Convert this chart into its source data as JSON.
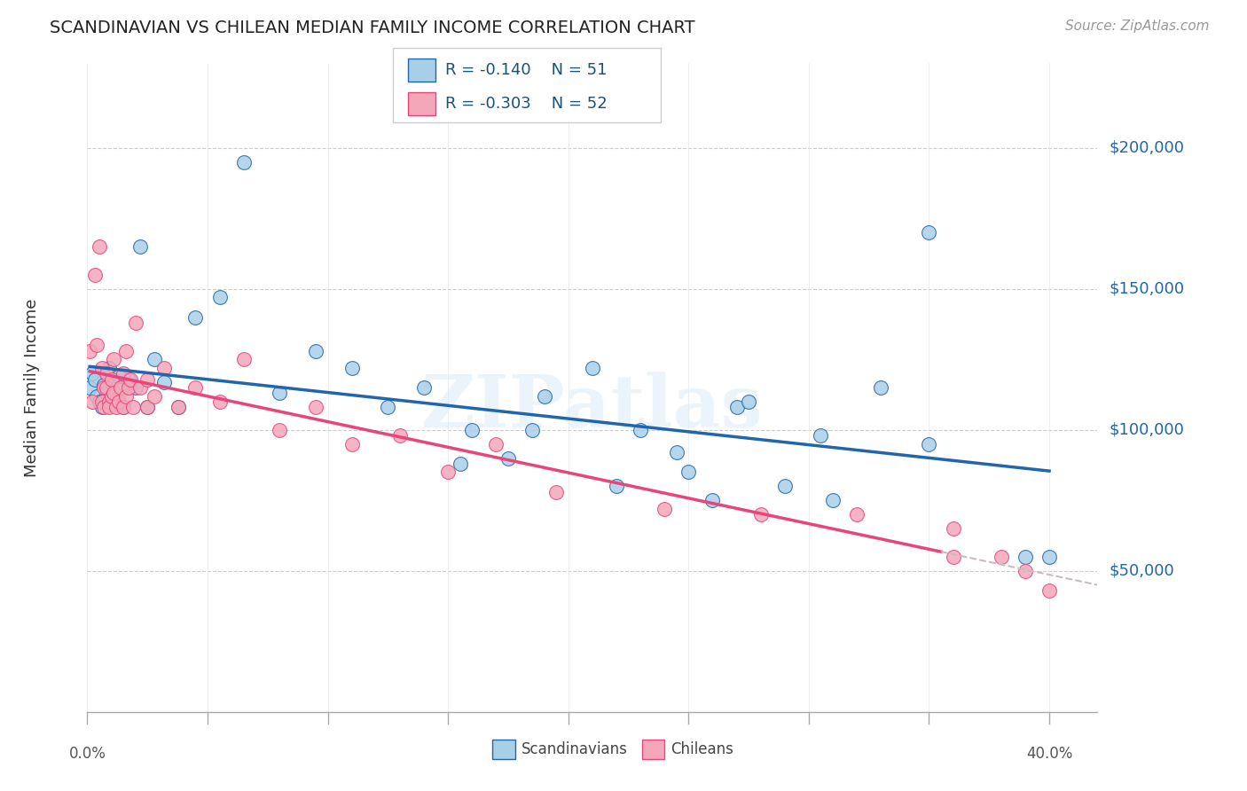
{
  "title": "SCANDINAVIAN VS CHILEAN MEDIAN FAMILY INCOME CORRELATION CHART",
  "source": "Source: ZipAtlas.com",
  "ylabel": "Median Family Income",
  "watermark": "ZIPatlas",
  "legend_scand": "Scandinavians",
  "legend_chil": "Chileans",
  "R_scand": "-0.140",
  "N_scand": "51",
  "R_chil": "-0.303",
  "N_chil": "52",
  "color_scand": "#a8cfe8",
  "color_chil": "#f4a7b9",
  "color_scand_line": "#2166ac",
  "color_chil_line": "#e8457a",
  "color_chil_line_dash": "#ccbbbb",
  "ytick_labels": [
    "$50,000",
    "$100,000",
    "$150,000",
    "$200,000"
  ],
  "ytick_values": [
    50000,
    100000,
    150000,
    200000
  ],
  "ylim": [
    0,
    230000
  ],
  "xlim": [
    0.0,
    0.42
  ],
  "scand_x": [
    0.001,
    0.002,
    0.003,
    0.004,
    0.005,
    0.006,
    0.007,
    0.008,
    0.009,
    0.01,
    0.011,
    0.012,
    0.013,
    0.014,
    0.015,
    0.017,
    0.02,
    0.022,
    0.025,
    0.028,
    0.032,
    0.038,
    0.045,
    0.055,
    0.065,
    0.08,
    0.095,
    0.11,
    0.125,
    0.14,
    0.16,
    0.175,
    0.19,
    0.21,
    0.23,
    0.25,
    0.27,
    0.29,
    0.31,
    0.33,
    0.35,
    0.155,
    0.185,
    0.245,
    0.275,
    0.305,
    0.22,
    0.26,
    0.39,
    0.4,
    0.35
  ],
  "scand_y": [
    115000,
    120000,
    118000,
    112000,
    110000,
    108000,
    116000,
    113000,
    122000,
    117000,
    109000,
    111000,
    119000,
    114000,
    108000,
    118000,
    115000,
    165000,
    108000,
    125000,
    117000,
    108000,
    140000,
    147000,
    195000,
    113000,
    128000,
    122000,
    108000,
    115000,
    100000,
    90000,
    112000,
    122000,
    100000,
    85000,
    108000,
    80000,
    75000,
    115000,
    95000,
    88000,
    100000,
    92000,
    110000,
    98000,
    80000,
    75000,
    55000,
    55000,
    170000
  ],
  "chil_x": [
    0.001,
    0.002,
    0.003,
    0.004,
    0.005,
    0.006,
    0.006,
    0.007,
    0.007,
    0.008,
    0.008,
    0.009,
    0.009,
    0.01,
    0.01,
    0.011,
    0.011,
    0.012,
    0.013,
    0.014,
    0.015,
    0.015,
    0.016,
    0.016,
    0.017,
    0.018,
    0.019,
    0.02,
    0.022,
    0.025,
    0.025,
    0.028,
    0.032,
    0.038,
    0.045,
    0.055,
    0.065,
    0.08,
    0.095,
    0.11,
    0.13,
    0.15,
    0.17,
    0.195,
    0.24,
    0.28,
    0.32,
    0.36,
    0.36,
    0.38,
    0.39,
    0.4
  ],
  "chil_y": [
    128000,
    110000,
    155000,
    130000,
    165000,
    110000,
    122000,
    115000,
    108000,
    120000,
    115000,
    110000,
    108000,
    118000,
    112000,
    125000,
    113000,
    108000,
    110000,
    115000,
    120000,
    108000,
    128000,
    112000,
    115000,
    118000,
    108000,
    138000,
    115000,
    118000,
    108000,
    112000,
    122000,
    108000,
    115000,
    110000,
    125000,
    100000,
    108000,
    95000,
    98000,
    85000,
    95000,
    78000,
    72000,
    70000,
    70000,
    65000,
    55000,
    55000,
    50000,
    43000
  ]
}
